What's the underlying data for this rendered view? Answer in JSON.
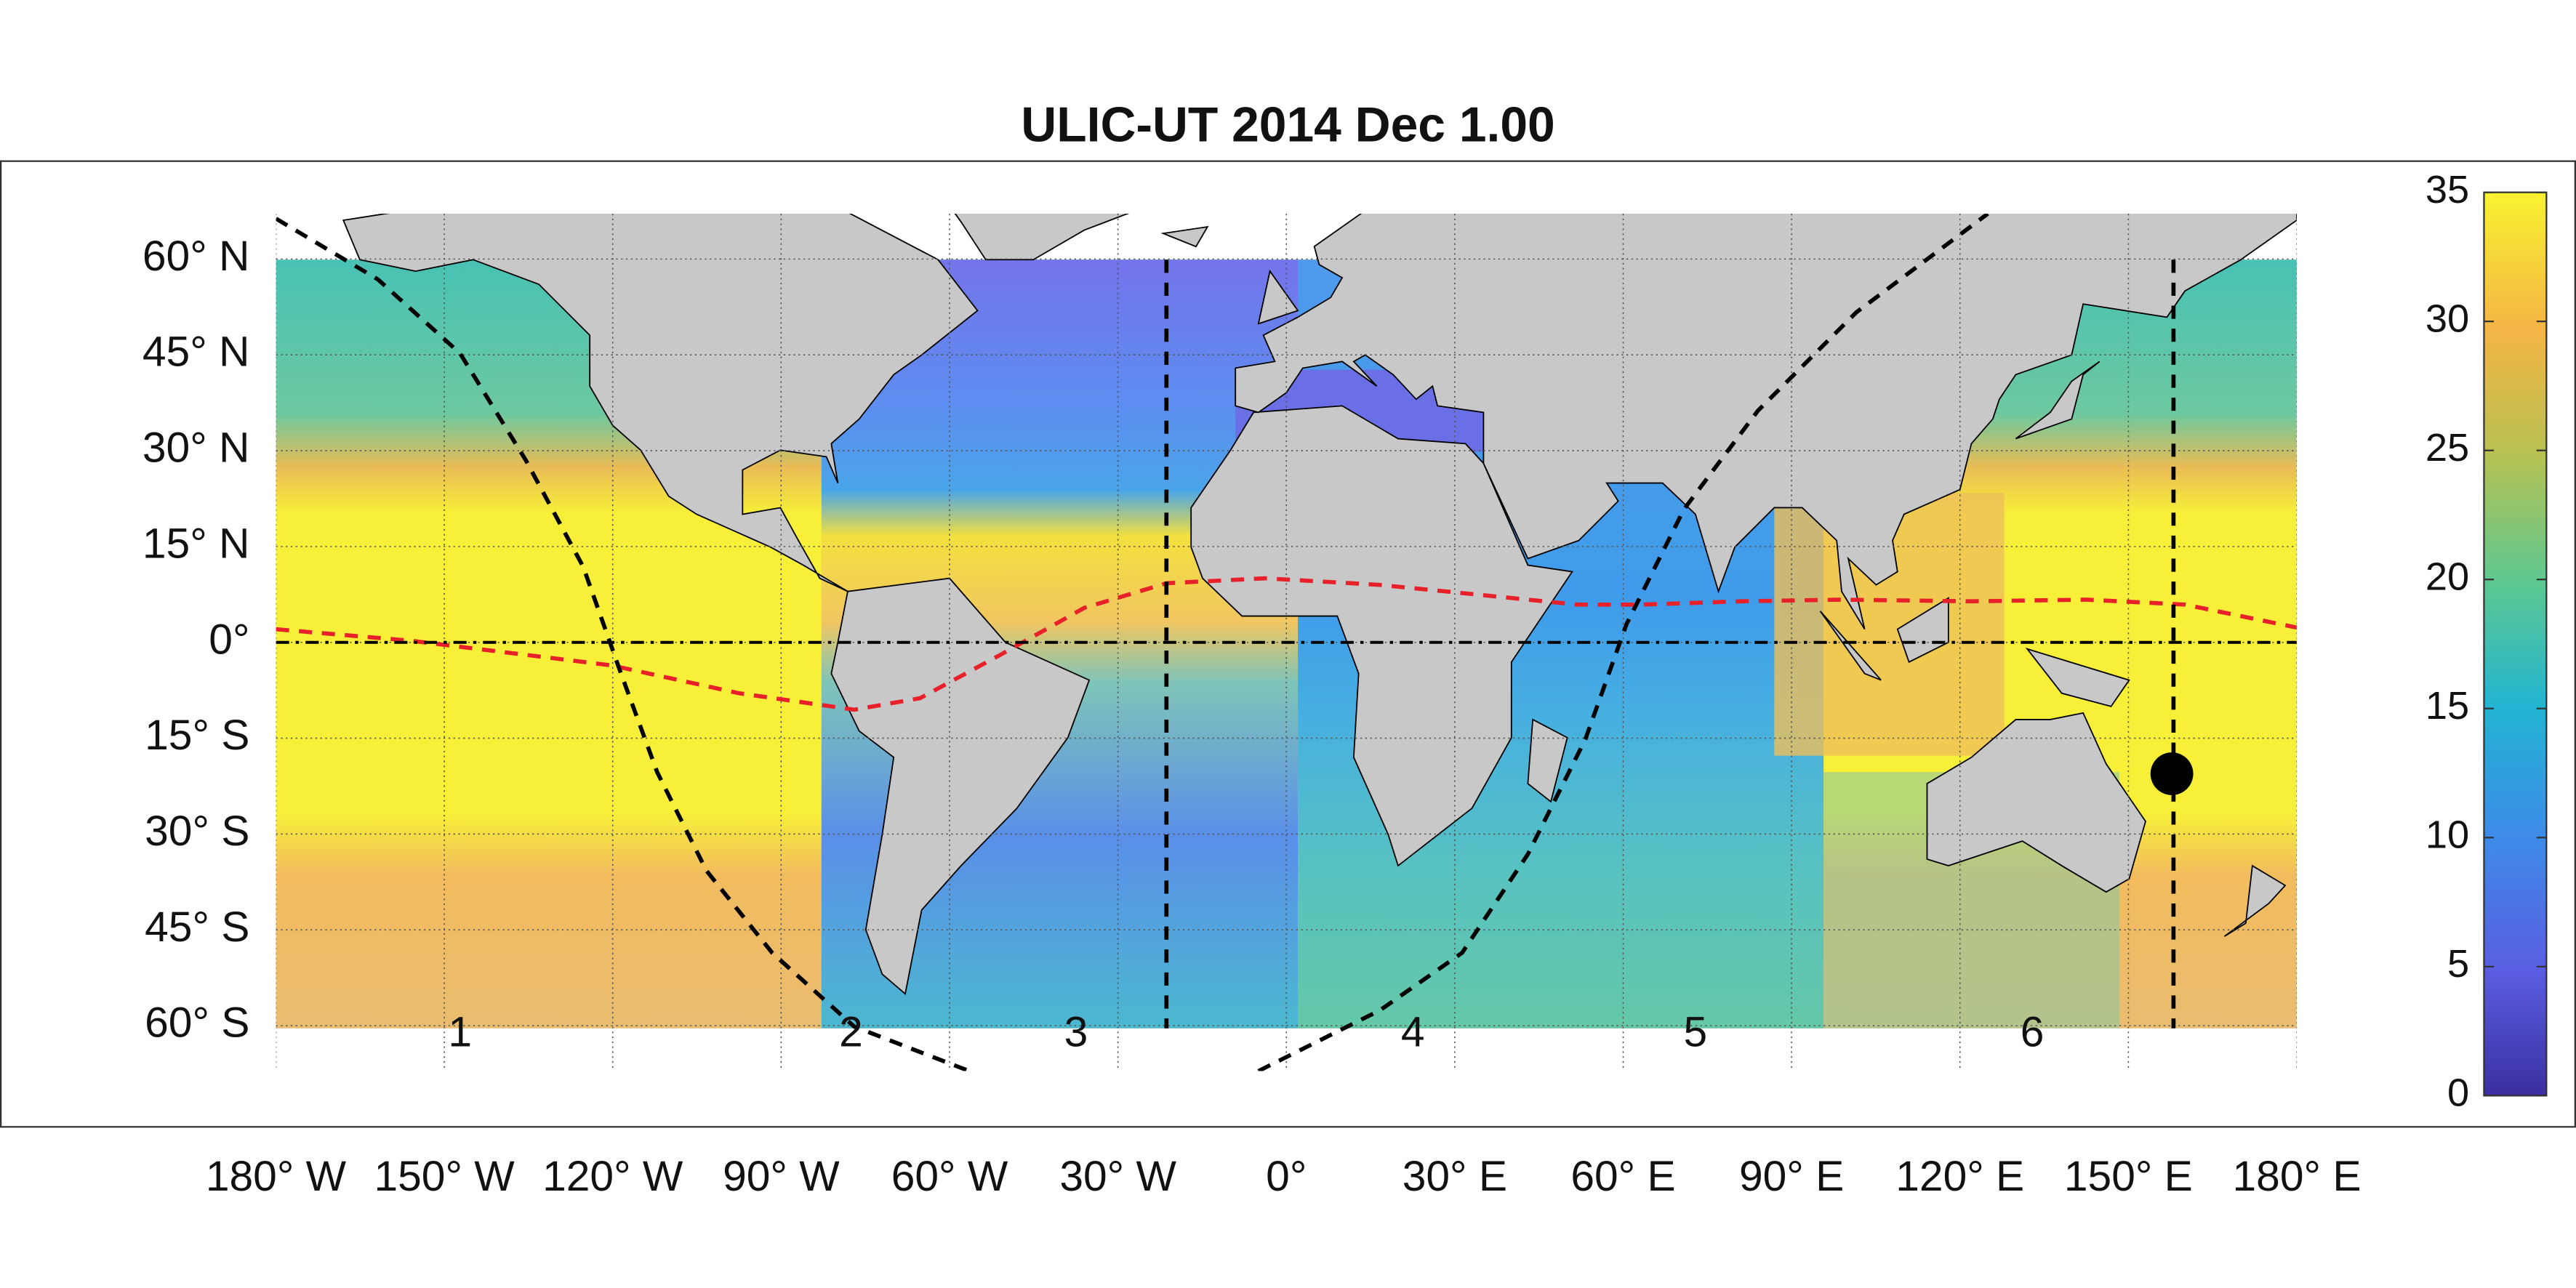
{
  "title": "ULIC-UT 2014 Dec  1.00",
  "map": {
    "lat_ticks": [
      {
        "value": 60,
        "label": "60° N"
      },
      {
        "value": 45,
        "label": "45° N"
      },
      {
        "value": 30,
        "label": "30° N"
      },
      {
        "value": 15,
        "label": "15° N"
      },
      {
        "value": 0,
        "label": "0°"
      },
      {
        "value": -15,
        "label": "15° S"
      },
      {
        "value": -30,
        "label": "30° S"
      },
      {
        "value": -45,
        "label": "45° S"
      },
      {
        "value": -60,
        "label": "60° S"
      }
    ],
    "lon_ticks": [
      {
        "value": -180,
        "label": "180° W"
      },
      {
        "value": -150,
        "label": "150° W"
      },
      {
        "value": -120,
        "label": "120° W"
      },
      {
        "value": -90,
        "label": "90° W"
      },
      {
        "value": -60,
        "label": "60° W"
      },
      {
        "value": -30,
        "label": "30° W"
      },
      {
        "value": 0,
        "label": "0°"
      },
      {
        "value": 30,
        "label": "30° E"
      },
      {
        "value": 60,
        "label": "60° E"
      },
      {
        "value": 90,
        "label": "90° E"
      },
      {
        "value": 120,
        "label": "120° E"
      },
      {
        "value": 150,
        "label": "150° E"
      },
      {
        "value": 180,
        "label": "180° E"
      }
    ],
    "region_labels": [
      "1",
      "2",
      "3",
      "4",
      "5",
      "6"
    ]
  },
  "colorbar": {
    "lim": [
      0,
      35
    ],
    "ticks": [
      0,
      5,
      10,
      15,
      20,
      25,
      30,
      35
    ]
  }
}
